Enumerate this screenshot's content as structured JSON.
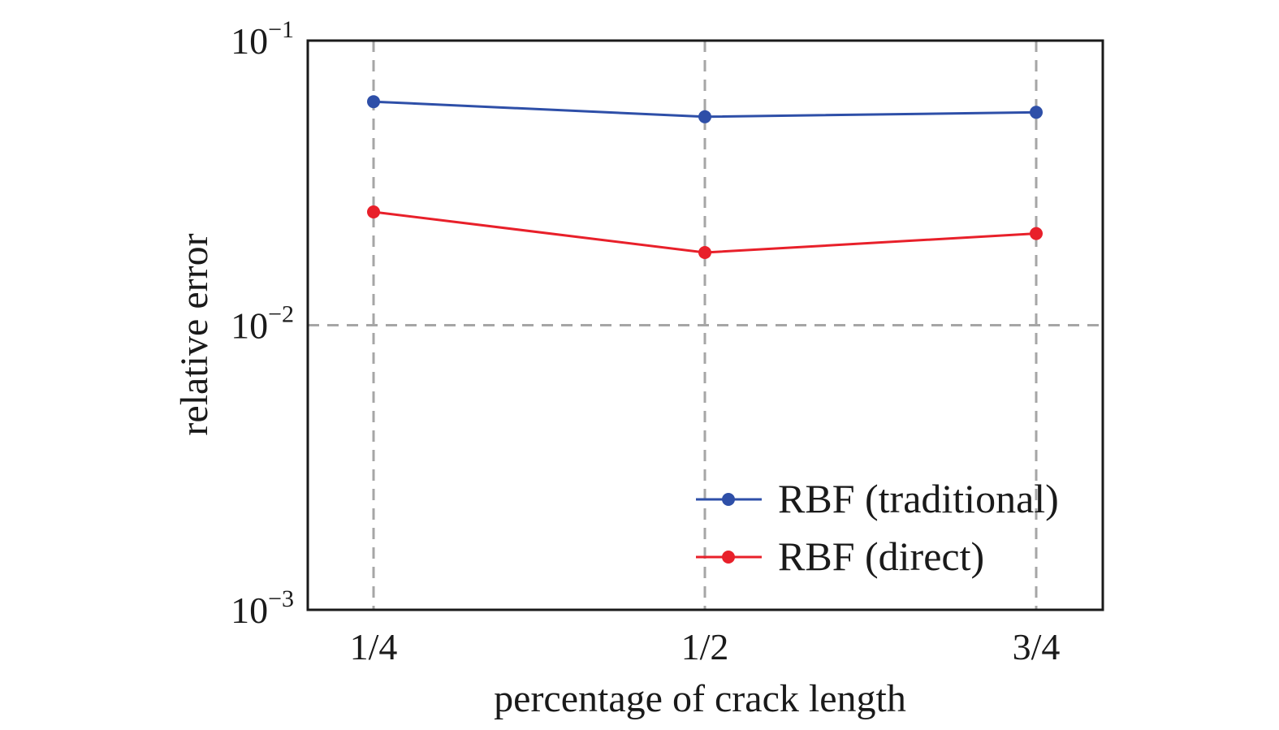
{
  "chart_data": {
    "type": "line",
    "xlabel": "percentage of crack length",
    "ylabel": "relative error",
    "y_scale": "log",
    "ylim": [
      0.001,
      0.1
    ],
    "y_ticks": [
      {
        "value": 0.1,
        "base": "10",
        "exp": "−1"
      },
      {
        "value": 0.01,
        "base": "10",
        "exp": "−2"
      },
      {
        "value": 0.001,
        "base": "10",
        "exp": "−3"
      }
    ],
    "categories": [
      "1/4",
      "1/2",
      "3/4"
    ],
    "grid": true,
    "legend_position": "lower-right",
    "series": [
      {
        "name": "RBF (traditional)",
        "color": "#2e4fa8",
        "values": [
          0.061,
          0.054,
          0.056
        ]
      },
      {
        "name": "RBF (direct)",
        "color": "#e8202a",
        "values": [
          0.025,
          0.018,
          0.021
        ]
      }
    ]
  }
}
